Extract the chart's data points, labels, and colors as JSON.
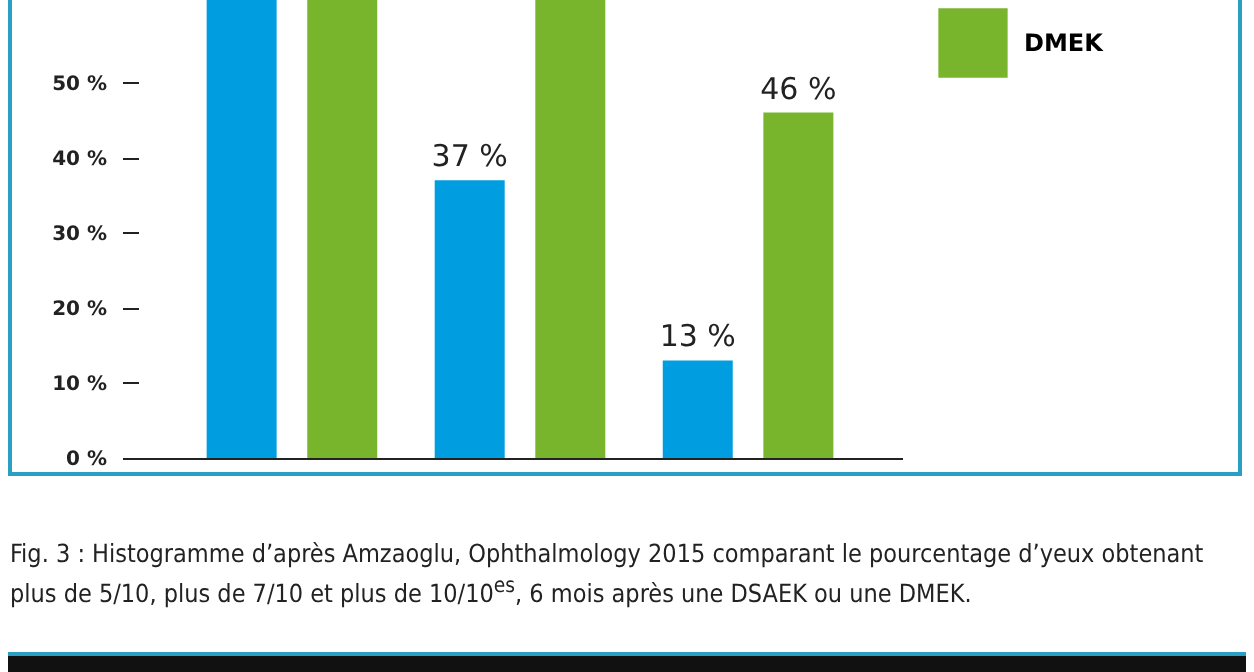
{
  "chart_data": {
    "type": "bar",
    "categories": [
      null,
      null,
      null
    ],
    "series": [
      {
        "color": "#009ee0",
        "values": [
          61,
          37,
          13
        ],
        "value_labels": [
          null,
          "37 %",
          "13 %"
        ]
      },
      {
        "name": "DMEK",
        "color": "#78b52c",
        "values": [
          61,
          61,
          46
        ],
        "value_labels": [
          null,
          null,
          "46 %"
        ]
      }
    ],
    "ylim": [
      0,
      61
    ],
    "yticks": [
      {
        "value": 0,
        "label": "0 %"
      },
      {
        "value": 10,
        "label": "10 %"
      },
      {
        "value": 20,
        "label": "20 %"
      },
      {
        "value": 30,
        "label": "30 %"
      },
      {
        "value": 40,
        "label": "40 %"
      },
      {
        "value": 50,
        "label": "50 %"
      }
    ],
    "grid": false,
    "legend": "top right",
    "annotations": [
      "Fig. 3 : Histogramme d’après Amzaoglu, Ophthalmology 2015 comparant le pourcentage d’yeux obtenant plus de 5/10, plus de 7/10 et plus de 10/10$^{es}$, 6 mois après une DSAEK ou une DMEK."
    ]
  }
}
